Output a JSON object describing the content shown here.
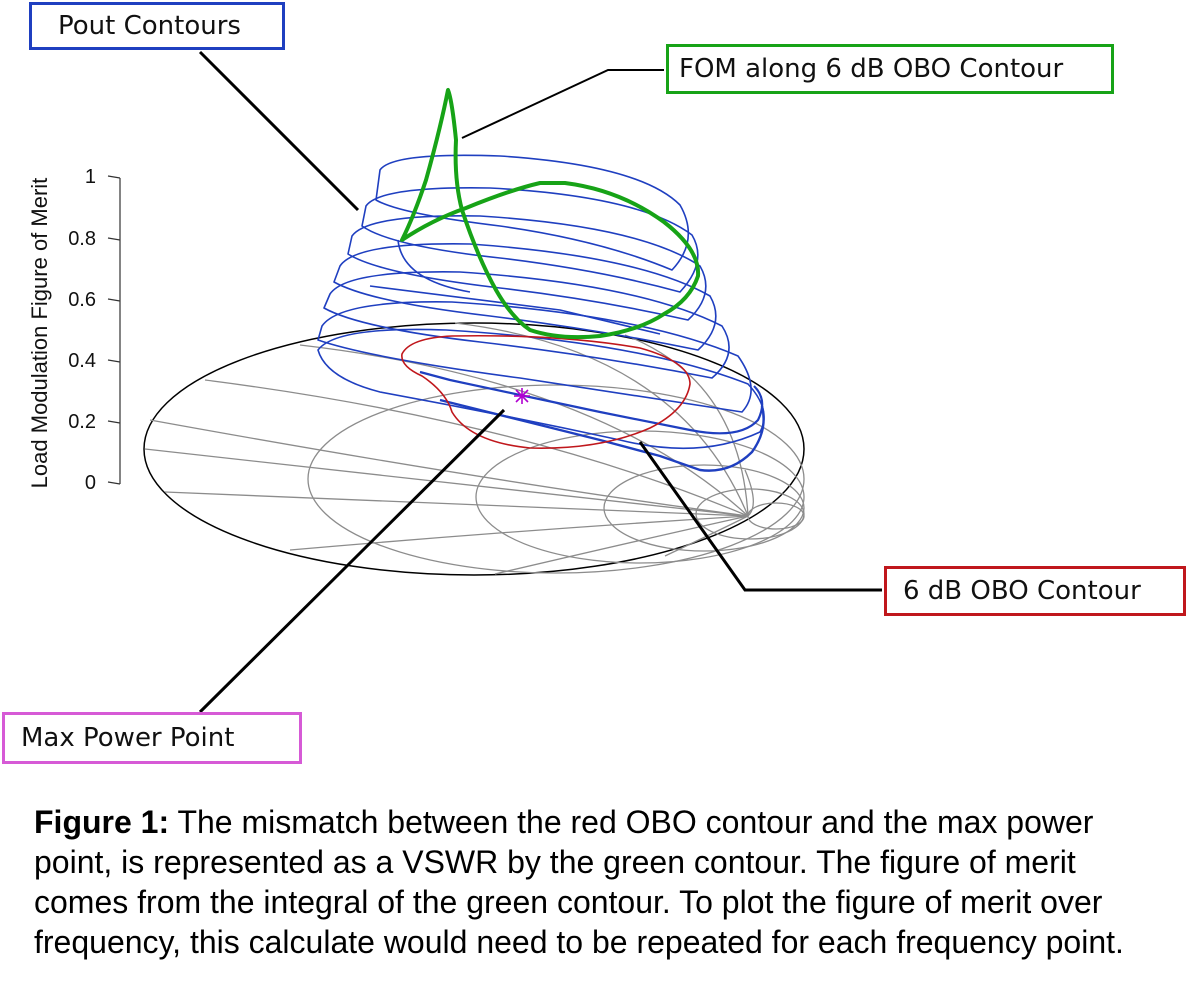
{
  "labels": {
    "pout": "Pout Contours",
    "fom": "FOM along 6 dB OBO Contour",
    "obo": "6 dB OBO Contour",
    "maxpower": "Max Power Point"
  },
  "axis": {
    "ylabel": "Load Modulation Figure of Merit",
    "ticks": [
      "1",
      "0.8",
      "0.6",
      "0.4",
      "0.2",
      "0"
    ]
  },
  "caption": {
    "lead": "Figure 1:",
    "text": " The mismatch between the red OBO contour and the max power point, is represented as a VSWR by the green contour. The figure of merit comes from the integral of the green contour. To plot the figure of merit over frequency, this calculate would need to be repeated for each frequency point."
  },
  "colors": {
    "pout": "#1f3fc0",
    "fom": "#17a317",
    "obo": "#c0171c",
    "maxpower": "#b000d0",
    "grid": "#8c8c8c"
  }
}
